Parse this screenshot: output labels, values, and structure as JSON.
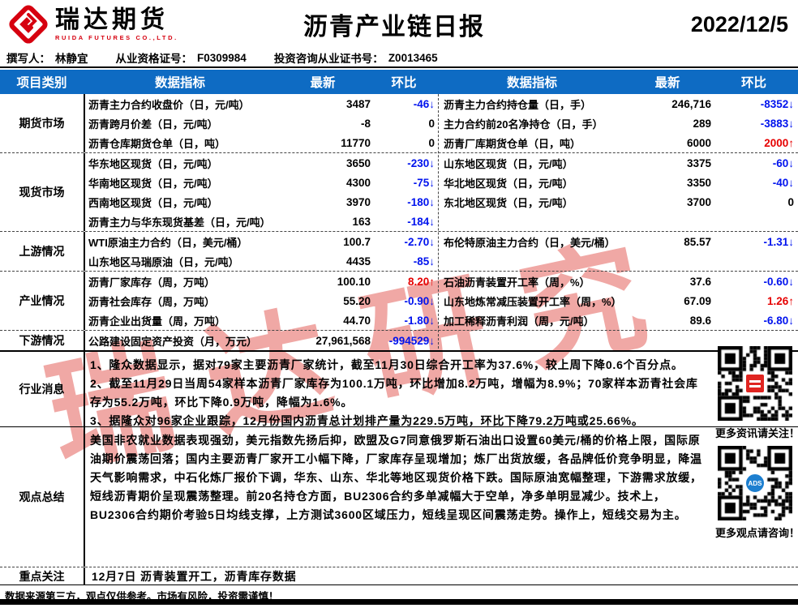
{
  "report": {
    "brand": "瑞达期货",
    "brand_en": "RUIDA FUTURES CO.,LTD.",
    "title": "沥青产业链日报",
    "date": "2022/12/5",
    "byline": {
      "author_label": "撰写人：",
      "author": "林静宜",
      "cert_label": "从业资格证号：",
      "cert_no": "F0309984",
      "advisor_label": "投资咨询从业证书号：",
      "advisor_no": "Z0013465"
    }
  },
  "columns": {
    "category": "项目类别",
    "indicator": "数据指标",
    "latest": "最新",
    "ratio": "环比"
  },
  "sections": [
    {
      "label": "期货市场",
      "rows": [
        {
          "l": {
            "ind": "沥青主力合约收盘价（日，元/吨）",
            "val": "3487",
            "chg": "-46↓",
            "t": "neg"
          },
          "r": {
            "ind": "沥青主力合约持仓量（日，手）",
            "val": "246,716",
            "chg": "-8352↓",
            "t": "neg"
          }
        },
        {
          "l": {
            "ind": "沥青跨月价差（日，元/吨）",
            "val": "-8",
            "chg": "0",
            "t": "flat"
          },
          "r": {
            "ind": "主力合约前20名净持仓（日，手）",
            "val": "289",
            "chg": "-3883↓",
            "t": "neg"
          }
        },
        {
          "l": {
            "ind": "沥青仓库期货仓单（日，吨）",
            "val": "11770",
            "chg": "0",
            "t": "flat"
          },
          "r": {
            "ind": "沥青厂库期货仓单（日，吨）",
            "val": "6000",
            "chg": "2000↑",
            "t": "pos"
          }
        }
      ]
    },
    {
      "label": "现货市场",
      "rows": [
        {
          "l": {
            "ind": "华东地区现货（日，元/吨）",
            "val": "3650",
            "chg": "-230↓",
            "t": "neg"
          },
          "r": {
            "ind": "山东地区现货（日，元/吨）",
            "val": "3375",
            "chg": "-60↓",
            "t": "neg"
          }
        },
        {
          "l": {
            "ind": "华南地区现货（日，元/吨）",
            "val": "4300",
            "chg": "-75↓",
            "t": "neg"
          },
          "r": {
            "ind": "华北地区现货（日，元/吨）",
            "val": "3350",
            "chg": "-40↓",
            "t": "neg"
          }
        },
        {
          "l": {
            "ind": "西南地区现货（日，元/吨）",
            "val": "3970",
            "chg": "-180↓",
            "t": "neg"
          },
          "r": {
            "ind": "东北地区现货（日，元/吨）",
            "val": "3700",
            "chg": "0",
            "t": "flat"
          }
        },
        {
          "l": {
            "ind": "沥青主力与华东现货基差（日，元/吨）",
            "val": "163",
            "chg": "-184↓",
            "t": "neg"
          },
          "r": {
            "ind": "",
            "val": "",
            "chg": "",
            "t": "flat"
          }
        }
      ]
    },
    {
      "label": "上游情况",
      "rows": [
        {
          "l": {
            "ind": "WTI原油主力合约（日，美元/桶）",
            "val": "100.7",
            "chg": "-2.70↓",
            "t": "neg"
          },
          "r": {
            "ind": "布伦特原油主力合约（日，美元/桶）",
            "val": "85.57",
            "chg": "-1.31↓",
            "t": "neg"
          }
        },
        {
          "l": {
            "ind": "山东地区马瑞原油（日，元/吨）",
            "val": "4435",
            "chg": "-85↓",
            "t": "neg"
          },
          "r": {
            "ind": "",
            "val": "",
            "chg": "",
            "t": "flat"
          }
        }
      ]
    },
    {
      "label": "产业情况",
      "rows": [
        {
          "l": {
            "ind": "沥青厂家库存（周，万吨）",
            "val": "100.10",
            "chg": "8.20↑",
            "t": "pos"
          },
          "r": {
            "ind": "石油沥青装置开工率（周，%）",
            "val": "37.6",
            "chg": "-0.60↓",
            "t": "neg"
          }
        },
        {
          "l": {
            "ind": "沥青社会库存（周，万吨）",
            "val": "55.20",
            "chg": "-0.90↓",
            "t": "neg"
          },
          "r": {
            "ind": "山东地炼常减压装置开工率（周，%）",
            "val": "67.09",
            "chg": "1.26↑",
            "t": "pos"
          }
        },
        {
          "l": {
            "ind": "沥青企业出货量（周，万吨）",
            "val": "44.70",
            "chg": "-1.80↓",
            "t": "neg"
          },
          "r": {
            "ind": "加工稀释沥青利润（周，元/吨）",
            "val": "89.6",
            "chg": "-6.80↓",
            "t": "neg"
          }
        }
      ]
    },
    {
      "label": "下游情况",
      "rows": [
        {
          "l": {
            "ind": "公路建设固定资产投资（月，万元）",
            "val": "27,961,568",
            "chg": "-994529↓",
            "t": "neg"
          },
          "r": {
            "ind": "",
            "val": "",
            "chg": "",
            "t": "flat"
          }
        }
      ]
    }
  ],
  "news": {
    "label": "行业消息",
    "lines": [
      "1、隆众数据显示，据对79家主要沥青厂家统计，截至11月30日综合开工率为37.6%，较上周下降0.6个百分点。",
      "2、截至11月29日当周54家样本沥青厂家库存为100.1万吨，环比增加8.2万吨，增幅为8.9%；70家样本沥青社会库存为55.2万吨，环比下降0.9万吨，降幅为1.6%。",
      "3、据隆众对96家企业跟踪，12月份国内沥青总计划排产量为229.5万吨，环比下降79.2万吨或25.66%。"
    ]
  },
  "opinion": {
    "label": "观点总结",
    "text": "美国非农就业数据表现强劲，美元指数先扬后抑，欧盟及G7同意俄罗斯石油出口设置60美元/桶的价格上限，国际原油期价震荡回落；国内主要沥青厂家开工小幅下降，厂家库存呈现增加；炼厂出货放缓，各品牌低价竞争明显，降温天气影响需求，中石化炼厂报价下调，华东、山东、华北等地区现货价格下跌。国际原油宽幅整理，下游需求放缓，短线沥青期价呈现震荡整理。前20名持仓方面，BU2306合约多单减幅大于空单，净多单明显减少。技术上，BU2306合约期价考验5日均线支撑，上方测试3600区域压力，短线呈现区间震荡走势。操作上，短线交易为主。"
  },
  "focus": {
    "label": "重点关注",
    "text": "12月7日 沥青装置开工，沥青库存数据"
  },
  "sidebar": {
    "qr1_caption": "更多资讯请关注！",
    "qr2_caption": "更多观点请咨询！",
    "qr2_logo": "ADS"
  },
  "footer": {
    "disclaimer": "数据来源第三方，观点仅供参考。市场有风险，投资需谨慎！"
  },
  "watermark": {
    "text": "瑞达研究"
  },
  "colors": {
    "header_blue": "#0e6bc3",
    "up_red": "#e60000",
    "down_blue": "#0013ee",
    "brand_red": "#d6000f"
  }
}
